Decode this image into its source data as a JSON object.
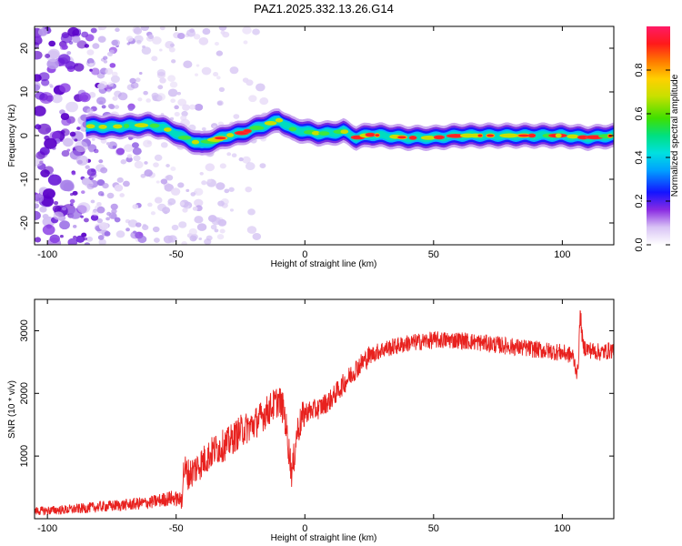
{
  "figure": {
    "title": "PAZ1.2025.332.13.26.G14"
  },
  "chart_data": [
    {
      "type": "heatmap",
      "title": "PAZ1.2025.332.13.26.G14",
      "xlabel": "Height of straight line (km)",
      "ylabel": "Frequency (Hz)",
      "xlim": [
        -105,
        120
      ],
      "ylim": [
        -25,
        25
      ],
      "xticks": [
        -100,
        -50,
        0,
        50,
        100
      ],
      "yticks": [
        20,
        10,
        0,
        -10,
        -20
      ],
      "colorbar": {
        "label": "Normalized spectral amplitude",
        "range": [
          0,
          1
        ],
        "ticks": [
          0.0,
          0.2,
          0.4,
          0.6,
          0.8
        ]
      },
      "ridge": {
        "description": "dominant frequency ridge",
        "x": [
          -85,
          -80,
          -75,
          -70,
          -65,
          -60,
          -55,
          -50,
          -45,
          -40,
          -35,
          -30,
          -25,
          -20,
          -15,
          -10,
          -5,
          0,
          5,
          10,
          15,
          20,
          25,
          30,
          40,
          50,
          60,
          70,
          80,
          90,
          100,
          110,
          120
        ],
        "y": [
          2.2,
          2.0,
          2.0,
          2.2,
          2.3,
          2.5,
          1.8,
          0.5,
          -1.0,
          -2.0,
          -1.0,
          0.0,
          0.5,
          1.5,
          2.5,
          3.5,
          1.5,
          1.0,
          0.5,
          0.5,
          1.0,
          -0.5,
          0.2,
          0.0,
          -0.5,
          -0.5,
          0.0,
          0.0,
          0.0,
          0.0,
          0.0,
          -0.5,
          0.0
        ]
      }
    },
    {
      "type": "line",
      "xlabel": "Height of straight line (km)",
      "ylabel": "SNR (10 * v/v)",
      "xlim": [
        -105,
        120
      ],
      "ylim": [
        0,
        3500
      ],
      "xticks": [
        -100,
        -50,
        0,
        50,
        100
      ],
      "yticks": [
        1000,
        2000,
        3000
      ],
      "series": [
        {
          "name": "SNR",
          "color": "#e8211e",
          "x": [
            -105,
            -100,
            -90,
            -80,
            -70,
            -60,
            -52,
            -48,
            -47,
            -45,
            -40,
            -35,
            -30,
            -25,
            -20,
            -15,
            -10,
            -8,
            -5,
            -3,
            0,
            5,
            10,
            15,
            20,
            25,
            30,
            40,
            50,
            60,
            70,
            80,
            90,
            100,
            104,
            106,
            107,
            108,
            110,
            115,
            120
          ],
          "y": [
            120,
            130,
            150,
            190,
            220,
            260,
            330,
            300,
            800,
            700,
            900,
            1100,
            1200,
            1400,
            1500,
            1700,
            1900,
            1700,
            700,
            1400,
            1700,
            1750,
            1900,
            2150,
            2400,
            2600,
            2700,
            2800,
            2850,
            2850,
            2800,
            2750,
            2700,
            2650,
            2600,
            2300,
            3300,
            2750,
            2700,
            2650,
            2700
          ]
        }
      ]
    }
  ]
}
